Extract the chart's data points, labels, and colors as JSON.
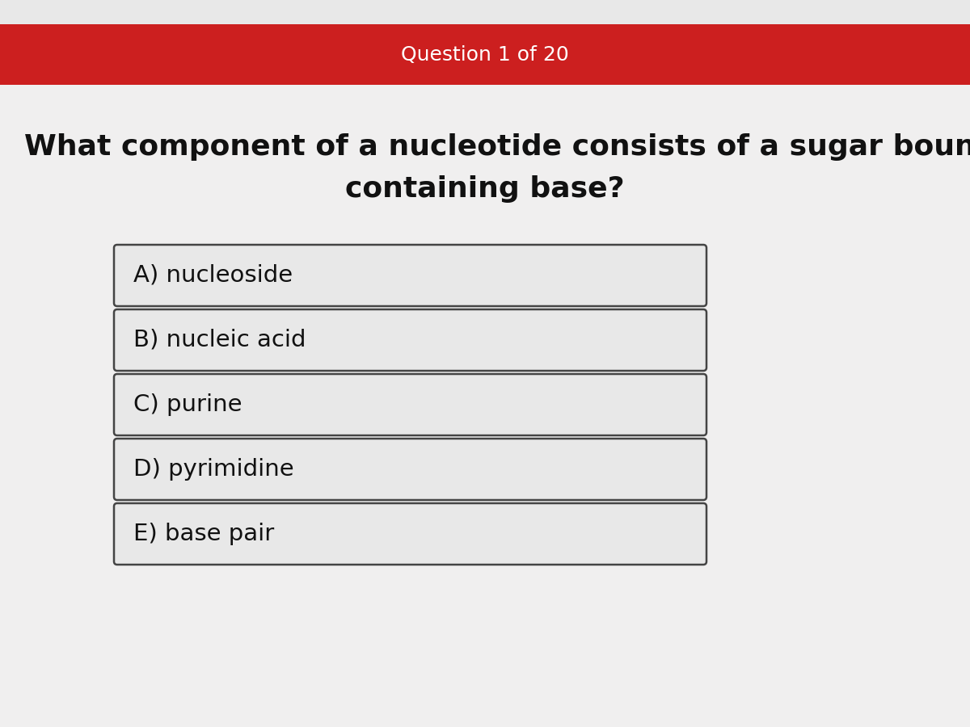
{
  "header_text": "Question 1 of 20",
  "header_bg_color": "#cc1f1f",
  "header_text_color": "#ffffff",
  "body_bg_color": "#e0e0e0",
  "question_bg_color": "#f0efef",
  "question_text_line1": "What component of a nucleotide consists of a sugar bound to a nitrogen-",
  "question_text_line2": "containing base?",
  "question_text_color": "#111111",
  "question_fontsize": 26,
  "options": [
    "A) nucleoside",
    "B) nucleic acid",
    "C) purine",
    "D) pyrimidine",
    "E) base pair"
  ],
  "option_box_facecolor": "#e8e8e8",
  "option_border_color": "#444444",
  "option_text_color": "#111111",
  "option_fontsize": 21,
  "top_bar_color": "#e8e8e8",
  "header_text_fontsize": 18
}
